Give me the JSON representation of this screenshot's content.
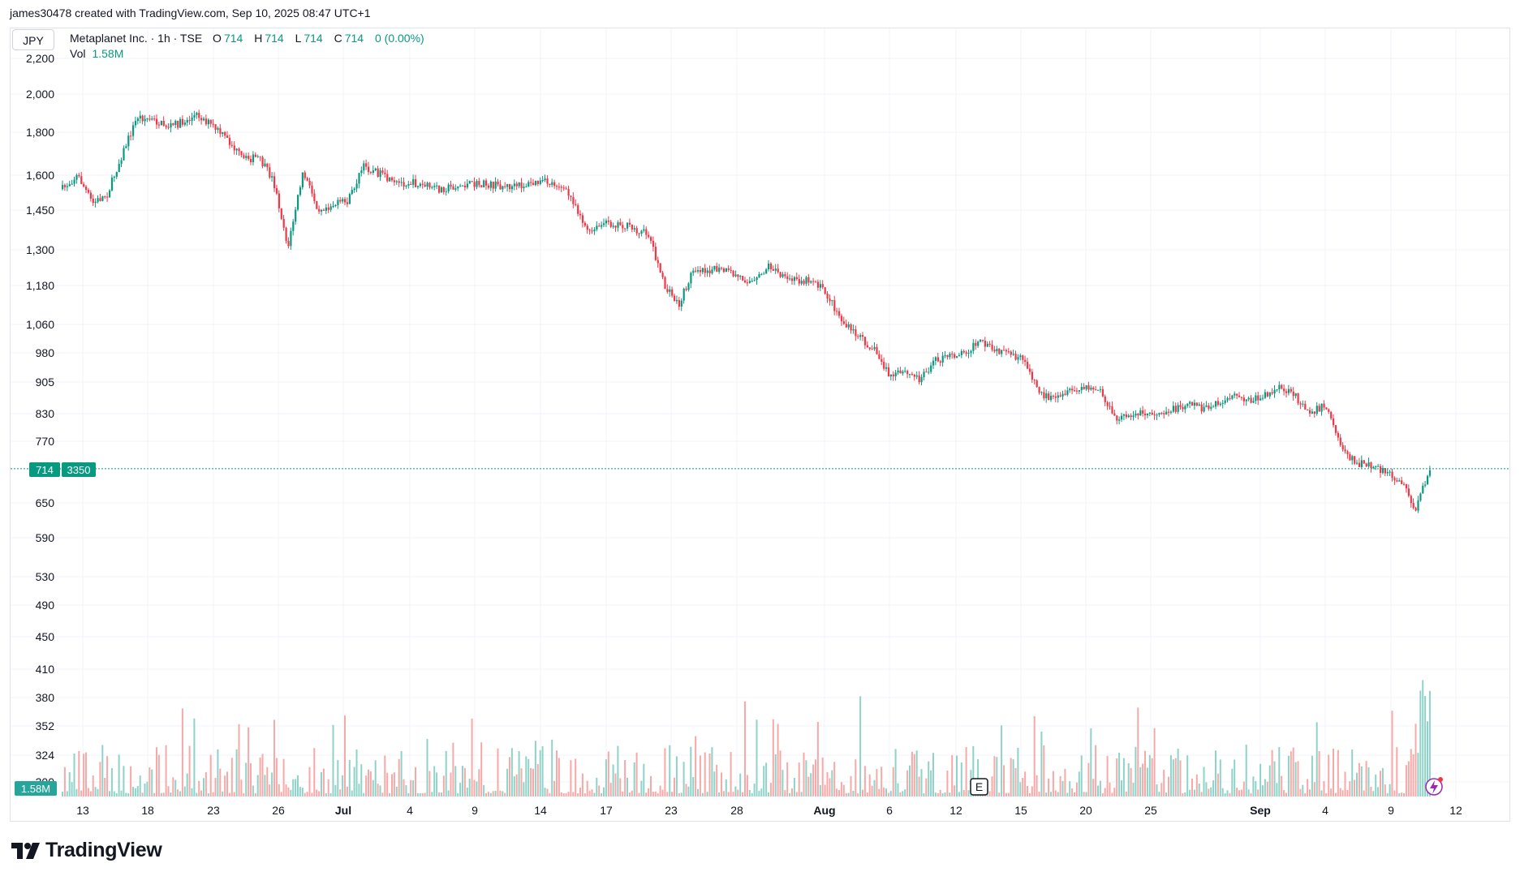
{
  "header": {
    "credit": "james30478 created with TradingView.com, Sep 10, 2025 08:47 UTC+1"
  },
  "legend": {
    "currency": "JPY",
    "symbol": "Metaplanet Inc. · 1h · TSE",
    "open_label": "O",
    "open": "714",
    "high_label": "H",
    "high": "714",
    "low_label": "L",
    "low": "714",
    "close_label": "C",
    "close": "714",
    "change": "0 (0.00%)",
    "volume_label": "Vol",
    "volume": "1.58M"
  },
  "price_tag": {
    "price": "714",
    "countdown": "3350"
  },
  "volume_tag": "1.58M",
  "earnings_marker": "E",
  "footer": {
    "brand": "TradingView"
  },
  "colors": {
    "up": "#089981",
    "down": "#f23645",
    "up_volume": "#8fd3c8",
    "down_volume": "#f7a9a7",
    "grid": "#f0f3fa"
  },
  "chart_data": {
    "type": "candlestick",
    "title": "Metaplanet Inc. · 1h · TSE",
    "currency": "JPY",
    "y_ticks": [
      2200,
      2000,
      1800,
      1600,
      1450,
      1300,
      1180,
      1060,
      980,
      905,
      830,
      770,
      650,
      590,
      530,
      490,
      450,
      410,
      380,
      352,
      324,
      300
    ],
    "x_ticks": [
      {
        "label": "13",
        "bold": false
      },
      {
        "label": "18",
        "bold": false
      },
      {
        "label": "23",
        "bold": false
      },
      {
        "label": "26",
        "bold": false
      },
      {
        "label": "Jul",
        "bold": true
      },
      {
        "label": "4",
        "bold": false
      },
      {
        "label": "9",
        "bold": false
      },
      {
        "label": "14",
        "bold": false
      },
      {
        "label": "17",
        "bold": false
      },
      {
        "label": "23",
        "bold": false
      },
      {
        "label": "28",
        "bold": false
      },
      {
        "label": "Aug",
        "bold": true
      },
      {
        "label": "6",
        "bold": false
      },
      {
        "label": "12",
        "bold": false
      },
      {
        "label": "15",
        "bold": false
      },
      {
        "label": "20",
        "bold": false
      },
      {
        "label": "25",
        "bold": false
      },
      {
        "label": "Sep",
        "bold": true
      },
      {
        "label": "4",
        "bold": false
      },
      {
        "label": "9",
        "bold": false
      },
      {
        "label": "12",
        "bold": false
      }
    ],
    "log_scale": true,
    "grid": true,
    "last_price": 714,
    "close_series": [
      {
        "date": "2025-06-11",
        "close": 1540
      },
      {
        "date": "2025-06-12",
        "close": 1600
      },
      {
        "date": "2025-06-13",
        "close": 1480
      },
      {
        "date": "2025-06-14",
        "close": 1520
      },
      {
        "date": "2025-06-16",
        "close": 1880
      },
      {
        "date": "2025-06-17",
        "close": 1860
      },
      {
        "date": "2025-06-18",
        "close": 1830
      },
      {
        "date": "2025-06-19",
        "close": 1850
      },
      {
        "date": "2025-06-20",
        "close": 1890
      },
      {
        "date": "2025-06-21",
        "close": 1830
      },
      {
        "date": "2025-06-22",
        "close": 1760
      },
      {
        "date": "2025-06-23",
        "close": 1670
      },
      {
        "date": "2025-06-24",
        "close": 1680
      },
      {
        "date": "2025-06-25",
        "close": 1580
      },
      {
        "date": "2025-06-26",
        "close": 1310
      },
      {
        "date": "2025-06-27",
        "close": 1610
      },
      {
        "date": "2025-06-28",
        "close": 1460
      },
      {
        "date": "2025-06-30",
        "close": 1490
      },
      {
        "date": "2025-07-01",
        "close": 1640
      },
      {
        "date": "2025-07-02",
        "close": 1610
      },
      {
        "date": "2025-07-03",
        "close": 1560
      },
      {
        "date": "2025-07-04",
        "close": 1570
      },
      {
        "date": "2025-07-06",
        "close": 1540
      },
      {
        "date": "2025-07-08",
        "close": 1560
      },
      {
        "date": "2025-07-09",
        "close": 1560
      },
      {
        "date": "2025-07-11",
        "close": 1550
      },
      {
        "date": "2025-07-13",
        "close": 1570
      },
      {
        "date": "2025-07-14",
        "close": 1560
      },
      {
        "date": "2025-07-15",
        "close": 1490
      },
      {
        "date": "2025-07-16",
        "close": 1360
      },
      {
        "date": "2025-07-17",
        "close": 1400
      },
      {
        "date": "2025-07-18",
        "close": 1400
      },
      {
        "date": "2025-07-20",
        "close": 1360
      },
      {
        "date": "2025-07-21",
        "close": 1180
      },
      {
        "date": "2025-07-22",
        "close": 1120
      },
      {
        "date": "2025-07-23",
        "close": 1240
      },
      {
        "date": "2025-07-25",
        "close": 1230
      },
      {
        "date": "2025-07-27",
        "close": 1190
      },
      {
        "date": "2025-07-28",
        "close": 1250
      },
      {
        "date": "2025-07-29",
        "close": 1200
      },
      {
        "date": "2025-07-31",
        "close": 1200
      },
      {
        "date": "2025-08-01",
        "close": 1140
      },
      {
        "date": "2025-08-02",
        "close": 1060
      },
      {
        "date": "2025-08-04",
        "close": 990
      },
      {
        "date": "2025-08-05",
        "close": 920
      },
      {
        "date": "2025-08-06",
        "close": 930
      },
      {
        "date": "2025-08-07",
        "close": 915
      },
      {
        "date": "2025-08-08",
        "close": 960
      },
      {
        "date": "2025-08-10",
        "close": 985
      },
      {
        "date": "2025-08-11",
        "close": 1010
      },
      {
        "date": "2025-08-12",
        "close": 985
      },
      {
        "date": "2025-08-13",
        "close": 975
      },
      {
        "date": "2025-08-14",
        "close": 960
      },
      {
        "date": "2025-08-15",
        "close": 880
      },
      {
        "date": "2025-08-16",
        "close": 860
      },
      {
        "date": "2025-08-17",
        "close": 880
      },
      {
        "date": "2025-08-18",
        "close": 890
      },
      {
        "date": "2025-08-19",
        "close": 885
      },
      {
        "date": "2025-08-20",
        "close": 815
      },
      {
        "date": "2025-08-21",
        "close": 830
      },
      {
        "date": "2025-08-22",
        "close": 830
      },
      {
        "date": "2025-08-24",
        "close": 840
      },
      {
        "date": "2025-08-25",
        "close": 860
      },
      {
        "date": "2025-08-26",
        "close": 840
      },
      {
        "date": "2025-08-27",
        "close": 855
      },
      {
        "date": "2025-08-28",
        "close": 870
      },
      {
        "date": "2025-08-29",
        "close": 860
      },
      {
        "date": "2025-08-31",
        "close": 890
      },
      {
        "date": "2025-09-01",
        "close": 870
      },
      {
        "date": "2025-09-02",
        "close": 835
      },
      {
        "date": "2025-09-03",
        "close": 850
      },
      {
        "date": "2025-09-04",
        "close": 760
      },
      {
        "date": "2025-09-05",
        "close": 725
      },
      {
        "date": "2025-09-06",
        "close": 720
      },
      {
        "date": "2025-09-07",
        "close": 705
      },
      {
        "date": "2025-09-08",
        "close": 690
      },
      {
        "date": "2025-09-09",
        "close": 640
      },
      {
        "date": "2025-09-10",
        "close": 714
      }
    ]
  }
}
